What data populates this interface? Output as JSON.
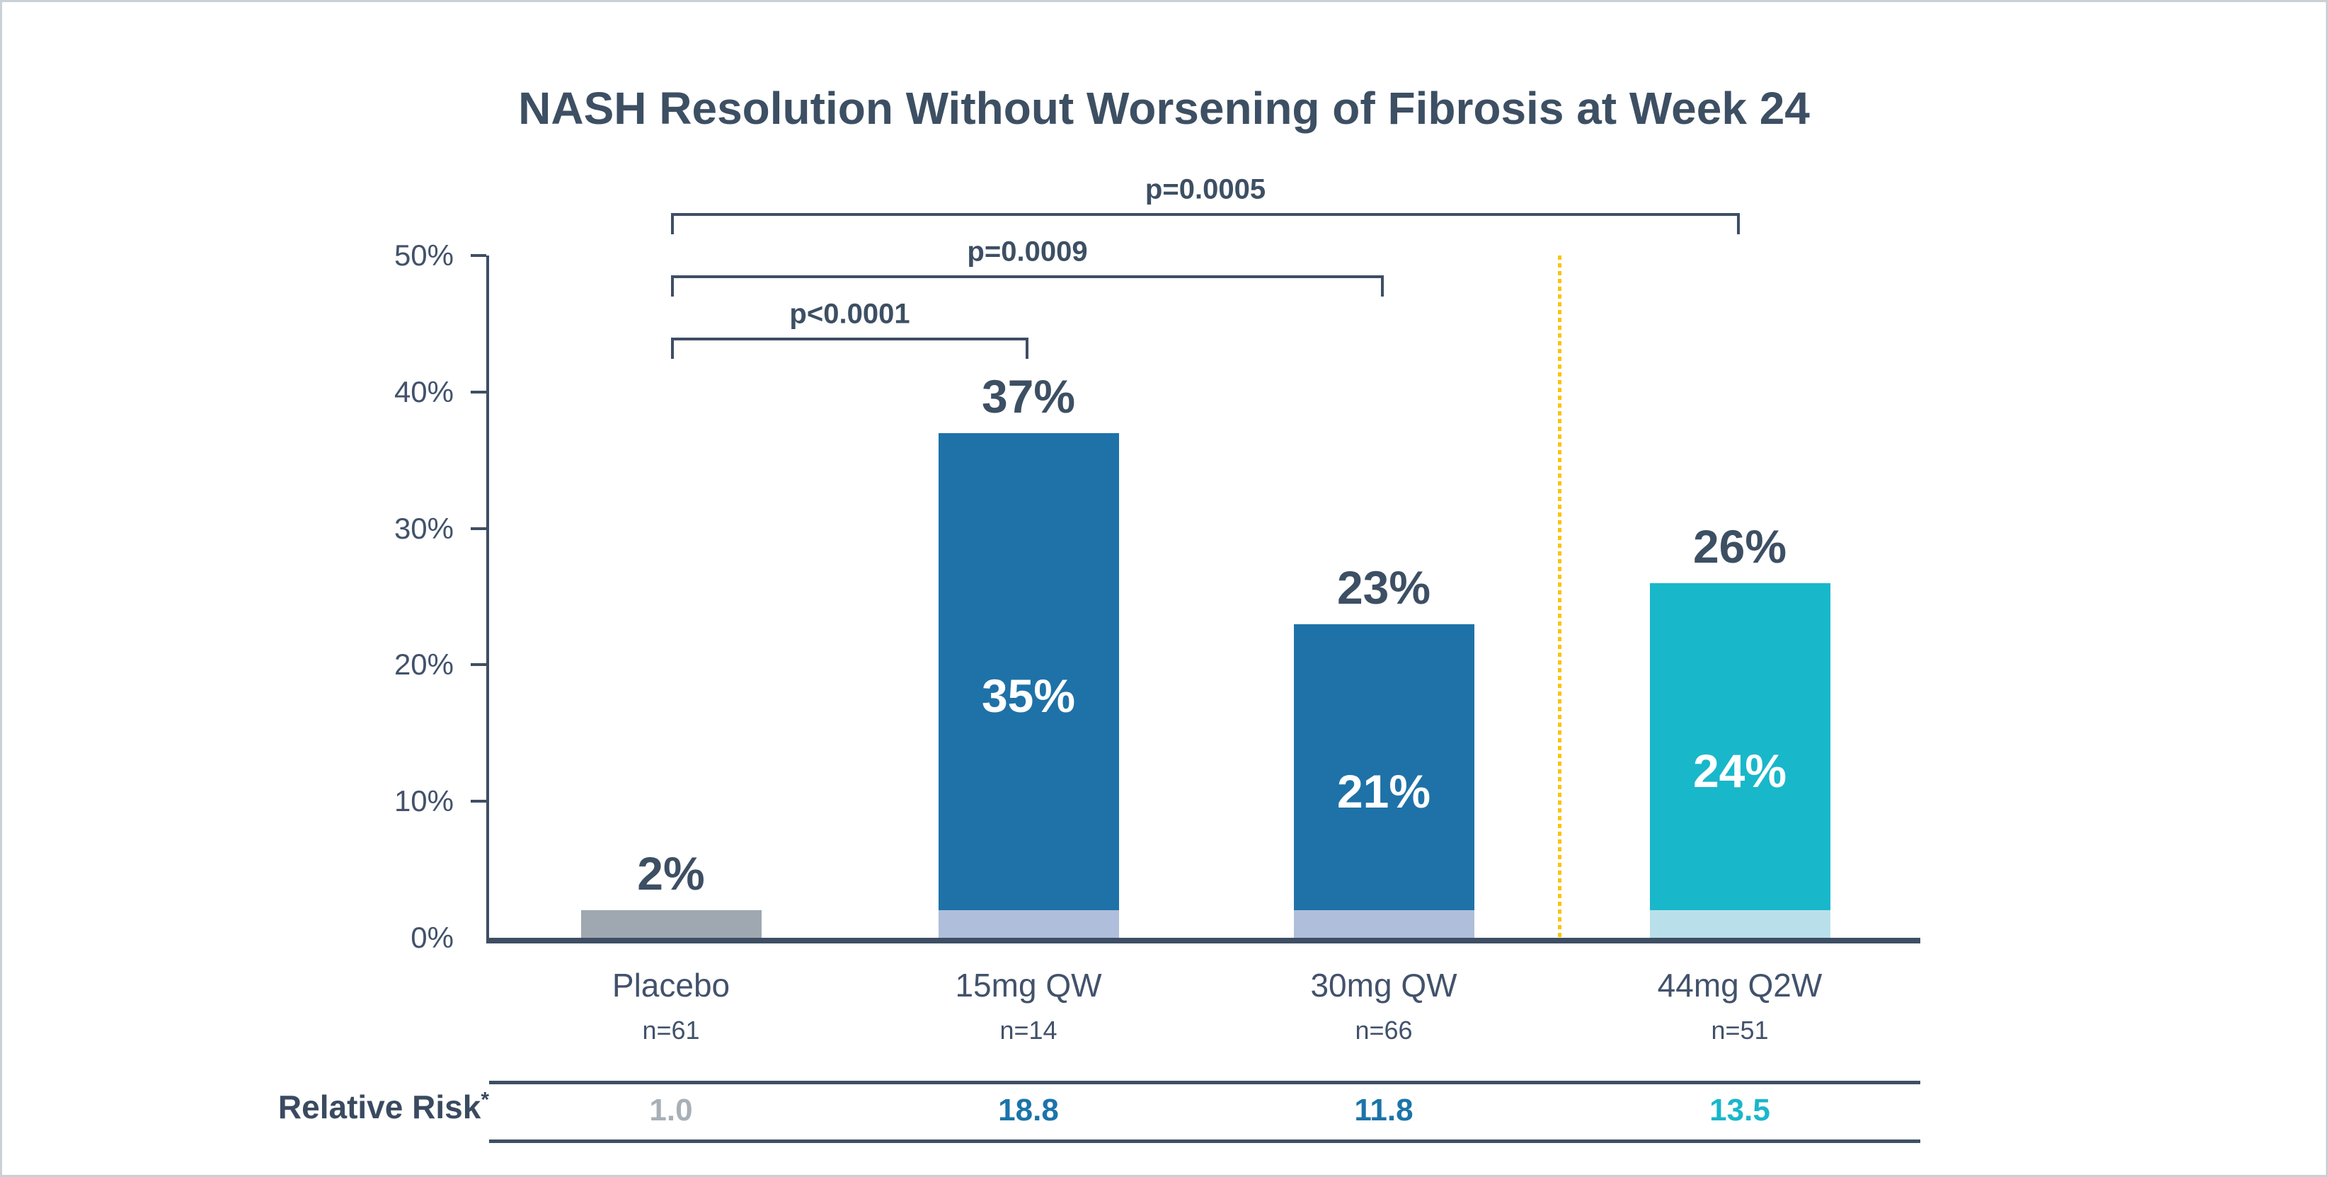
{
  "title": "NASH Resolution Without Worsening of Fibrosis at Week 24",
  "chart_data": {
    "type": "bar",
    "title": "NASH Resolution Without Worsening of Fibrosis at Week 24",
    "xlabel": "",
    "ylabel": "",
    "ylim": [
      0,
      50
    ],
    "grid": false,
    "y_axis": {
      "tick_labels": [
        "0%",
        "10%",
        "20%",
        "30%",
        "40%",
        "50%"
      ],
      "tick_values": [
        0,
        10,
        20,
        30,
        40,
        50
      ]
    },
    "categories": [
      "Placebo",
      "15mg QW",
      "30mg QW",
      "44mg Q2W"
    ],
    "n_labels": [
      "n=61",
      "n=14",
      "n=66",
      "n=51"
    ],
    "bars": [
      {
        "category": "Placebo",
        "n": "n=61",
        "total_value": 2,
        "total_label": "2%",
        "segments": [
          {
            "value": 2,
            "color": "#9FA8B0"
          }
        ]
      },
      {
        "category": "15mg QW",
        "n": "n=14",
        "total_value": 37,
        "total_label": "37%",
        "segments": [
          {
            "value": 2,
            "color": "#AFBEDA"
          },
          {
            "value": 35,
            "color": "#1E72A8",
            "label": "35%",
            "label_color": "#FFFFFF"
          }
        ]
      },
      {
        "category": "30mg QW",
        "n": "n=66",
        "total_value": 23,
        "total_label": "23%",
        "segments": [
          {
            "value": 2,
            "color": "#AFBEDA"
          },
          {
            "value": 21,
            "color": "#1E72A8",
            "label": "21%",
            "label_color": "#FFFFFF"
          }
        ]
      },
      {
        "category": "44mg Q2W",
        "n": "n=51",
        "total_value": 26,
        "total_label": "26%",
        "segments": [
          {
            "value": 2,
            "color": "#B9E0EA"
          },
          {
            "value": 24,
            "color": "#19B7CA",
            "label": "24%",
            "label_color": "#FFFFFF"
          }
        ]
      }
    ],
    "significance_brackets": [
      {
        "label": "p<0.0001",
        "from_category": "Placebo",
        "to_category": "15mg QW"
      },
      {
        "label": "p=0.0009",
        "from_category": "Placebo",
        "to_category": "30mg QW"
      },
      {
        "label": "p=0.0005",
        "from_category": "Placebo",
        "to_category": "44mg Q2W"
      }
    ],
    "divider_line": {
      "style": "dashed",
      "color": "#FBC400",
      "between": [
        "30mg QW",
        "44mg Q2W"
      ]
    },
    "relative_risk_row": {
      "label": "Relative Risk",
      "label_superscript": "*",
      "values": [
        {
          "category": "Placebo",
          "text": "1.0",
          "color": "#A7B0B6"
        },
        {
          "category": "15mg QW",
          "text": "18.8",
          "color": "#1C74A9"
        },
        {
          "category": "30mg QW",
          "text": "11.8",
          "color": "#1C74A9"
        },
        {
          "category": "44mg Q2W",
          "text": "13.5",
          "color": "#19B7CA"
        }
      ]
    },
    "legend": "none",
    "colors": {
      "placebo_bar": "#9FA8B0",
      "weekly_bar": "#1E72A8",
      "weekly_bar_base": "#AFBEDA",
      "q2w_bar": "#19B7CA",
      "q2w_bar_base": "#B9E0EA",
      "axis": "#3E4E64",
      "text": "#3D4F63",
      "divider": "#FBC400"
    }
  }
}
